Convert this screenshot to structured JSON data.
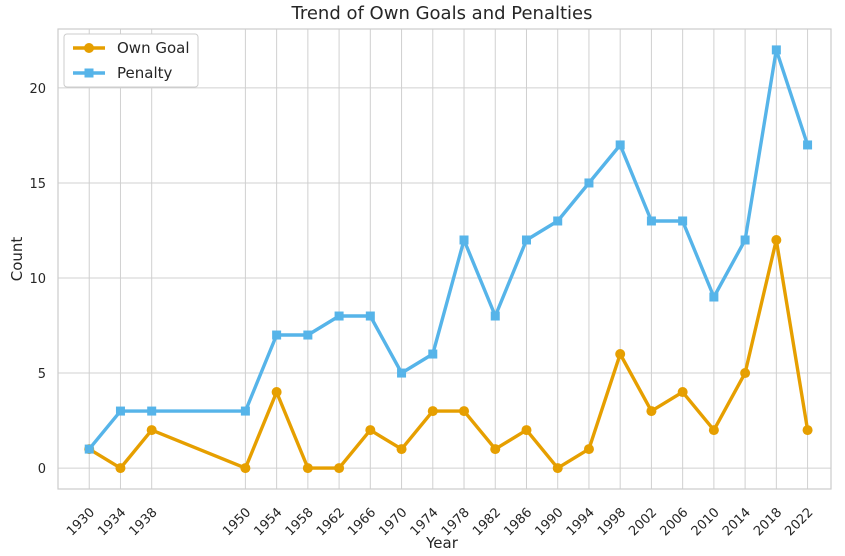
{
  "chart_data": {
    "type": "line",
    "title": "Trend of Own Goals and Penalties",
    "xlabel": "Year",
    "ylabel": "Count",
    "x": [
      1930,
      1934,
      1938,
      1950,
      1954,
      1958,
      1962,
      1966,
      1970,
      1974,
      1978,
      1982,
      1986,
      1990,
      1994,
      1998,
      2002,
      2006,
      2010,
      2014,
      2018,
      2022
    ],
    "x_tick_labels": [
      "1930",
      "1934",
      "1938",
      "1950",
      "1954",
      "1958",
      "1962",
      "1966",
      "1970",
      "1974",
      "1978",
      "1982",
      "1986",
      "1990",
      "1994",
      "1998",
      "2002",
      "2006",
      "2010",
      "2014",
      "2018",
      "2022"
    ],
    "y_ticks": [
      0,
      5,
      10,
      15,
      20
    ],
    "y_tick_labels": [
      "0",
      "5",
      "10",
      "15",
      "20"
    ],
    "xlim": [
      1926,
      2025
    ],
    "ylim": [
      -1.1,
      23.1
    ],
    "grid": true,
    "legend_position": "top-left",
    "series": [
      {
        "name": "Own Goal",
        "color": "#E69F00",
        "marker": "circle",
        "values": [
          1,
          0,
          2,
          0,
          4,
          0,
          0,
          2,
          1,
          3,
          3,
          1,
          2,
          0,
          1,
          6,
          3,
          4,
          2,
          5,
          12,
          2
        ]
      },
      {
        "name": "Penalty",
        "color": "#56B4E9",
        "marker": "square",
        "values": [
          1,
          3,
          3,
          3,
          7,
          7,
          8,
          8,
          5,
          6,
          12,
          8,
          12,
          13,
          15,
          17,
          13,
          13,
          9,
          12,
          22,
          17
        ]
      }
    ]
  }
}
